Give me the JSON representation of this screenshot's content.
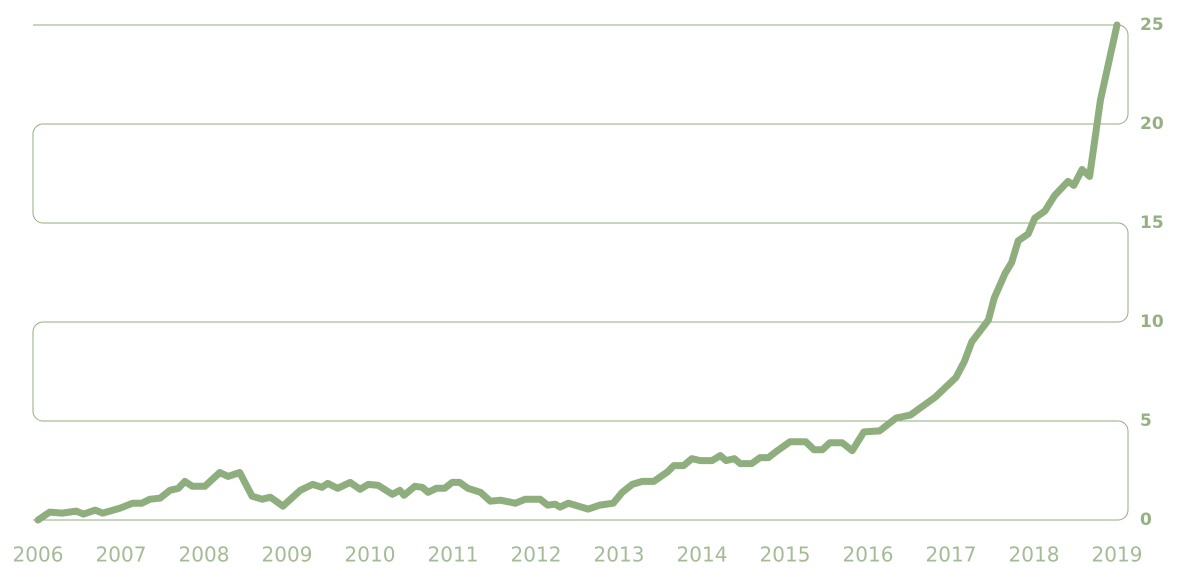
{
  "chart_data": {
    "type": "line",
    "x": [
      2006.0,
      2006.14,
      2006.29,
      2006.46,
      2006.55,
      2006.69,
      2006.78,
      2006.99,
      2007.14,
      2007.25,
      2007.35,
      2007.47,
      2007.59,
      2007.69,
      2007.77,
      2007.86,
      2008.01,
      2008.19,
      2008.29,
      2008.43,
      2008.58,
      2008.7,
      2008.8,
      2008.95,
      2009.16,
      2009.31,
      2009.42,
      2009.49,
      2009.61,
      2009.76,
      2009.88,
      2009.98,
      2010.1,
      2010.27,
      2010.36,
      2010.41,
      2010.54,
      2010.63,
      2010.7,
      2010.8,
      2010.9,
      2010.99,
      2011.08,
      2011.18,
      2011.33,
      2011.45,
      2011.57,
      2011.75,
      2011.87,
      2012.05,
      2012.14,
      2012.23,
      2012.29,
      2012.39,
      2012.63,
      2012.77,
      2012.93,
      2013.04,
      2013.16,
      2013.28,
      2013.42,
      2013.59,
      2013.66,
      2013.78,
      2013.88,
      2013.98,
      2014.12,
      2014.22,
      2014.29,
      2014.39,
      2014.46,
      2014.6,
      2014.7,
      2014.8,
      2014.89,
      2015.06,
      2015.25,
      2015.35,
      2015.45,
      2015.54,
      2015.69,
      2015.81,
      2015.95,
      2016.14,
      2016.34,
      2016.51,
      2016.81,
      2017.06,
      2017.16,
      2017.25,
      2017.37,
      2017.45,
      2017.52,
      2017.65,
      2017.73,
      2017.81,
      2017.93,
      2018.01,
      2018.13,
      2018.25,
      2018.41,
      2018.48,
      2018.58,
      2018.67,
      2018.8,
      2019.0
    ],
    "series": [
      {
        "color": "#8fae7e",
        "values": [
          0,
          0.4,
          0.35,
          0.45,
          0.3,
          0.5,
          0.35,
          0.6,
          0.85,
          0.85,
          1.05,
          1.1,
          1.5,
          1.6,
          1.95,
          1.7,
          1.7,
          2.4,
          2.2,
          2.4,
          1.2,
          1.05,
          1.15,
          0.7,
          1.5,
          1.8,
          1.65,
          1.85,
          1.6,
          1.9,
          1.55,
          1.8,
          1.75,
          1.3,
          1.5,
          1.25,
          1.7,
          1.65,
          1.4,
          1.6,
          1.6,
          1.9,
          1.9,
          1.6,
          1.4,
          0.95,
          1.0,
          0.85,
          1.05,
          1.05,
          0.75,
          0.8,
          0.65,
          0.85,
          0.55,
          0.75,
          0.85,
          1.4,
          1.8,
          1.95,
          1.95,
          2.45,
          2.75,
          2.75,
          3.1,
          3.0,
          3.0,
          3.25,
          3.0,
          3.1,
          2.85,
          2.85,
          3.15,
          3.15,
          3.45,
          3.95,
          3.95,
          3.55,
          3.55,
          3.9,
          3.9,
          3.5,
          4.45,
          4.5,
          5.15,
          5.3,
          6.2,
          7.2,
          8.0,
          9.0,
          9.65,
          10.1,
          11.2,
          12.45,
          13.0,
          14.1,
          14.45,
          15.25,
          15.6,
          16.4,
          17.1,
          16.9,
          17.7,
          17.35,
          21.2,
          25
        ]
      }
    ],
    "xlim": [
      2006,
      2019
    ],
    "xticks": [
      2006,
      2007,
      2008,
      2009,
      2010,
      2011,
      2012,
      2013,
      2014,
      2015,
      2016,
      2017,
      2018,
      2019
    ],
    "ylim": [
      0,
      25
    ],
    "yticks": [
      0,
      5,
      10,
      15,
      20,
      25
    ],
    "grid": true,
    "grid_color": "#8fae7e"
  }
}
